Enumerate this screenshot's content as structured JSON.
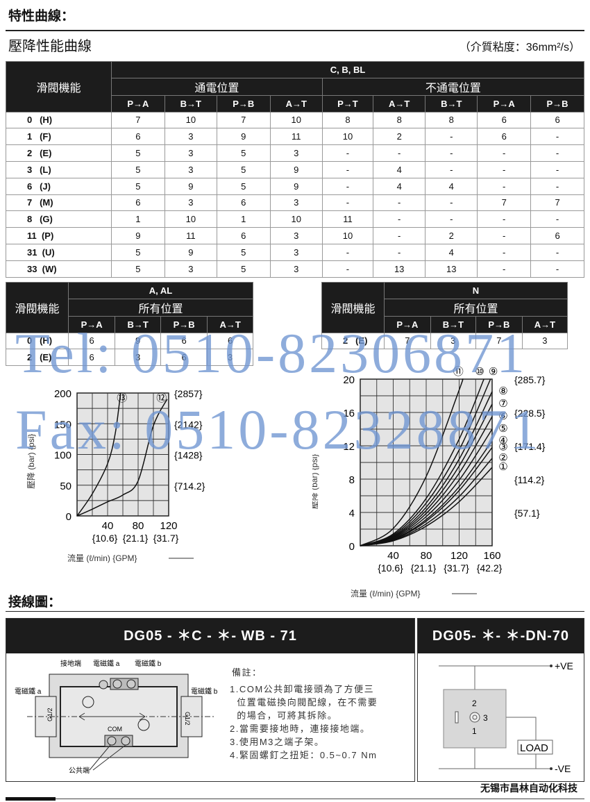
{
  "header": {
    "title": "特性曲線：",
    "subtitle": "壓降性能曲線",
    "viscosity": "（介質粘度：36mm²/s）"
  },
  "table1": {
    "func_label": "滑閥機能",
    "group": "C, B, BL",
    "energized": "通電位置",
    "deenergized": "不通電位置",
    "columns": [
      "P→A",
      "B→T",
      "P→B",
      "A→T",
      "P→T",
      "A→T",
      "B→T",
      "P→A",
      "P→B"
    ],
    "rows": [
      {
        "fn": "0   (H)",
        "v": [
          "7",
          "10",
          "7",
          "10",
          "8",
          "8",
          "8",
          "6",
          "6"
        ]
      },
      {
        "fn": "1   (F)",
        "v": [
          "6",
          "3",
          "9",
          "11",
          "10",
          "2",
          "-",
          "6",
          "-"
        ]
      },
      {
        "fn": "2   (E)",
        "v": [
          "5",
          "3",
          "5",
          "3",
          "-",
          "-",
          "-",
          "-",
          "-"
        ]
      },
      {
        "fn": "3   (L)",
        "v": [
          "5",
          "3",
          "5",
          "9",
          "-",
          "4",
          "-",
          "-",
          "-"
        ]
      },
      {
        "fn": "6   (J)",
        "v": [
          "5",
          "9",
          "5",
          "9",
          "-",
          "4",
          "4",
          "-",
          "-"
        ]
      },
      {
        "fn": "7   (M)",
        "v": [
          "6",
          "3",
          "6",
          "3",
          "-",
          "-",
          "-",
          "7",
          "7"
        ]
      },
      {
        "fn": "8   (G)",
        "v": [
          "1",
          "10",
          "1",
          "10",
          "11",
          "-",
          "-",
          "-",
          "-"
        ]
      },
      {
        "fn": "11  (P)",
        "v": [
          "9",
          "11",
          "6",
          "3",
          "10",
          "-",
          "2",
          "-",
          "6"
        ]
      },
      {
        "fn": "31  (U)",
        "v": [
          "5",
          "9",
          "5",
          "3",
          "-",
          "-",
          "4",
          "-",
          "-"
        ]
      },
      {
        "fn": "33  (W)",
        "v": [
          "5",
          "3",
          "5",
          "3",
          "-",
          "13",
          "13",
          "-",
          "-"
        ]
      }
    ]
  },
  "table2": {
    "func_label": "滑閥機能",
    "group": "A, AL",
    "position": "所有位置",
    "columns": [
      "P→A",
      "B→T",
      "P→B",
      "A→T"
    ],
    "rows": [
      {
        "fn": "0   (H)",
        "v": [
          "6",
          "9",
          "6",
          "6"
        ]
      },
      {
        "fn": "2   (E)",
        "v": [
          "6",
          "3",
          "6",
          "3"
        ]
      }
    ]
  },
  "table3": {
    "func_label": "滑閥機能",
    "group": "N",
    "position": "所有位置",
    "columns": [
      "P→A",
      "B→T",
      "P→B",
      "A→T"
    ],
    "rows": [
      {
        "fn": "2   (E)",
        "v": [
          "7",
          "3",
          "7",
          "3"
        ]
      }
    ]
  },
  "watermark": {
    "tel": "Tel: 0510-82306871",
    "fax": "Fax: 0510-82328871",
    "color": "#6f95d2"
  },
  "chart_data": [
    {
      "type": "line",
      "xlabel": "流量 (ℓ/min) {GPM}",
      "ylabel": "壓降 (bar) {psi}",
      "xlim": [
        0,
        120
      ],
      "ylim": [
        0,
        200
      ],
      "xticks": [
        "40",
        "80",
        "120"
      ],
      "xticks_values": [
        40,
        80,
        120
      ],
      "xticks_gpm": [
        "{10.6}",
        "{21.1}",
        "{31.7}"
      ],
      "yticks": [
        "0",
        "50",
        "100",
        "150",
        "200"
      ],
      "yticks_values": [
        0,
        50,
        100,
        150,
        200
      ],
      "yticks_psi": [
        "{714.2}",
        "{1428}",
        "{2142}",
        "{2857}"
      ],
      "grid": true,
      "series": [
        {
          "name": "⑬",
          "points": [
            [
              0,
              0
            ],
            [
              20,
              36
            ],
            [
              40,
              85
            ],
            [
              50,
              134
            ],
            [
              57,
              200
            ]
          ]
        },
        {
          "name": "⑫",
          "points": [
            [
              0,
              0
            ],
            [
              20,
              11
            ],
            [
              40,
              23
            ],
            [
              60,
              34
            ],
            [
              80,
              57
            ],
            [
              100,
              147
            ],
            [
              118,
              190
            ]
          ]
        }
      ]
    },
    {
      "type": "line",
      "xlabel": "流量 (ℓ/min) {GPM}",
      "ylabel": "壓降 (bar) {psi}",
      "xlim": [
        0,
        160
      ],
      "ylim": [
        0,
        20
      ],
      "xticks": [
        "40",
        "80",
        "120",
        "160"
      ],
      "xticks_values": [
        40,
        80,
        120,
        160
      ],
      "xticks_gpm": [
        "{10.6}",
        "{21.1}",
        "{31.7}",
        "{42.2}"
      ],
      "yticks": [
        "0",
        "4",
        "8",
        "12",
        "16",
        "20"
      ],
      "yticks_values": [
        0,
        4,
        8,
        12,
        16,
        20
      ],
      "yticks_psi": [
        "{57.1}",
        "{114.2}",
        "{171.4}",
        "{228.5}",
        "{285.7}"
      ],
      "grid": true,
      "series": [
        {
          "name": "①",
          "points": [
            [
              0,
              0
            ],
            [
              40,
              0.59
            ],
            [
              80,
              2.35
            ],
            [
              120,
              5.29
            ],
            [
              160,
              9.4
            ]
          ]
        },
        {
          "name": "②",
          "points": [
            [
              0,
              0
            ],
            [
              40,
              0.66
            ],
            [
              80,
              2.63
            ],
            [
              120,
              5.91
            ],
            [
              160,
              10.5
            ]
          ]
        },
        {
          "name": "③",
          "points": [
            [
              0,
              0
            ],
            [
              40,
              0.74
            ],
            [
              80,
              2.95
            ],
            [
              120,
              6.64
            ],
            [
              160,
              11.8
            ]
          ]
        },
        {
          "name": "④",
          "points": [
            [
              0,
              0
            ],
            [
              40,
              0.79
            ],
            [
              80,
              3.15
            ],
            [
              120,
              7.09
            ],
            [
              160,
              12.6
            ]
          ]
        },
        {
          "name": "⑤",
          "points": [
            [
              0,
              0
            ],
            [
              40,
              0.88
            ],
            [
              80,
              3.5
            ],
            [
              120,
              7.88
            ],
            [
              160,
              14
            ]
          ]
        },
        {
          "name": "⑥",
          "points": [
            [
              0,
              0
            ],
            [
              40,
              0.97
            ],
            [
              80,
              3.88
            ],
            [
              120,
              8.72
            ],
            [
              160,
              15.5
            ]
          ]
        },
        {
          "name": "⑦",
          "points": [
            [
              0,
              0
            ],
            [
              40,
              1.06
            ],
            [
              80,
              4.25
            ],
            [
              120,
              9.56
            ],
            [
              160,
              17
            ]
          ]
        },
        {
          "name": "⑧",
          "points": [
            [
              0,
              0
            ],
            [
              40,
              1.16
            ],
            [
              80,
              4.63
            ],
            [
              120,
              10.4
            ],
            [
              160,
              18.5
            ]
          ]
        },
        {
          "name": "⑨",
          "points": [
            [
              0,
              0
            ],
            [
              40,
              1.28
            ],
            [
              80,
              5.13
            ],
            [
              120,
              11.5
            ],
            [
              158,
              20
            ]
          ]
        },
        {
          "name": "⑩",
          "points": [
            [
              0,
              0
            ],
            [
              40,
              1.42
            ],
            [
              80,
              5.69
            ],
            [
              120,
              12.8
            ],
            [
              150,
              20
            ]
          ]
        },
        {
          "name": "⑪",
          "points": [
            [
              0,
              0
            ],
            [
              40,
              2.08
            ],
            [
              80,
              8.32
            ],
            [
              120,
              18.7
            ],
            [
              124,
              20
            ]
          ]
        }
      ]
    }
  ],
  "wiring": {
    "title": "接線圖：",
    "left_title": "DG05 - ＊C - ＊- WB - 71",
    "right_title": "DG05- ＊- ＊-DN-70",
    "labels": {
      "ground": "接地端",
      "sol_a_top": "電磁鐵 a",
      "sol_b_top": "電磁鐵 b",
      "sol_a": "電磁鐵 a",
      "sol_b": "電磁鐵 b",
      "common": "公共端",
      "com": "COM",
      "port": "G1/2"
    },
    "notes_title": "備註：",
    "notes": [
      "1.COM公共卸電接頭為了方便三",
      "  位置電磁換向閥配線，在不需要",
      "  的場合，可將其拆除。",
      "2.當需要接地時，連接接地端。",
      "3.使用M3之端子架。",
      "4.緊固螺釘之扭矩：0.5~0.7 Nm"
    ],
    "dn": {
      "pos": "+VE",
      "neg": "-VE",
      "load": "LOAD",
      "pin1": "1",
      "pin2": "2",
      "pin3": "3"
    }
  },
  "footer": {
    "company": "无锡市昌林自动化科技"
  }
}
